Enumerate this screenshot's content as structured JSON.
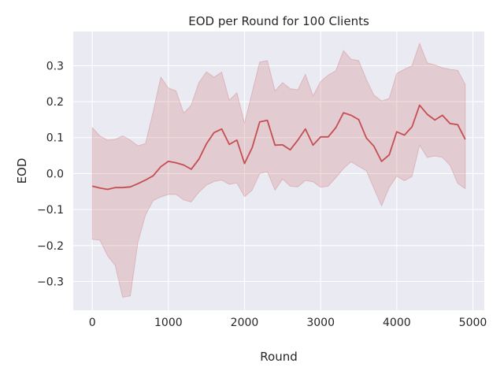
{
  "chart_data": {
    "type": "line",
    "title": "EOD per Round for 100 Clients",
    "xlabel": "Round",
    "ylabel": "EOD",
    "xlim": [
      -250,
      5150
    ],
    "ylim": [
      -0.38,
      0.395
    ],
    "xticks": [
      0,
      1000,
      2000,
      3000,
      4000,
      5000
    ],
    "xtick_labels": [
      "0",
      "1000",
      "2000",
      "3000",
      "4000",
      "5000"
    ],
    "yticks": [
      -0.3,
      -0.2,
      -0.1,
      0.0,
      0.1,
      0.2,
      0.3
    ],
    "ytick_labels": [
      "−0.3",
      "−0.2",
      "−0.1",
      "0.0",
      "0.1",
      "0.2",
      "0.3"
    ],
    "grid": true,
    "colors": {
      "line": "#c44e52",
      "band": "#c44e52",
      "background": "#eaeaf2",
      "grid": "#ffffff"
    },
    "x": [
      0,
      100,
      200,
      300,
      400,
      500,
      600,
      700,
      800,
      900,
      1000,
      1100,
      1200,
      1300,
      1400,
      1500,
      1600,
      1700,
      1800,
      1900,
      2000,
      2100,
      2200,
      2300,
      2400,
      2500,
      2600,
      2700,
      2800,
      2900,
      3000,
      3100,
      3200,
      3300,
      3400,
      3500,
      3600,
      3700,
      3800,
      3900,
      4000,
      4100,
      4200,
      4300,
      4400,
      4500,
      4600,
      4700,
      4800,
      4900
    ],
    "series": [
      {
        "values": [
          -0.035,
          -0.04,
          -0.044,
          -0.039,
          -0.039,
          -0.037,
          -0.028,
          -0.018,
          -0.006,
          0.019,
          0.034,
          0.03,
          0.024,
          0.012,
          0.04,
          0.083,
          0.114,
          0.124,
          0.081,
          0.093,
          0.028,
          0.072,
          0.144,
          0.148,
          0.079,
          0.08,
          0.066,
          0.093,
          0.124,
          0.079,
          0.102,
          0.102,
          0.128,
          0.169,
          0.162,
          0.15,
          0.099,
          0.076,
          0.034,
          0.052,
          0.116,
          0.107,
          0.13,
          0.19,
          0.165,
          0.149,
          0.162,
          0.139,
          0.136,
          0.095
        ],
        "lower": [
          -0.183,
          -0.185,
          -0.228,
          -0.255,
          -0.344,
          -0.34,
          -0.19,
          -0.115,
          -0.075,
          -0.065,
          -0.058,
          -0.058,
          -0.073,
          -0.079,
          -0.052,
          -0.032,
          -0.022,
          -0.018,
          -0.03,
          -0.026,
          -0.064,
          -0.046,
          0.0,
          0.005,
          -0.046,
          -0.015,
          -0.035,
          -0.037,
          -0.019,
          -0.023,
          -0.038,
          -0.035,
          -0.011,
          0.014,
          0.033,
          0.02,
          0.008,
          -0.041,
          -0.09,
          -0.039,
          -0.007,
          -0.02,
          -0.008,
          0.079,
          0.045,
          0.049,
          0.045,
          0.023,
          -0.027,
          -0.042
        ],
        "upper": [
          0.128,
          0.105,
          0.093,
          0.095,
          0.105,
          0.093,
          0.077,
          0.084,
          0.172,
          0.268,
          0.238,
          0.23,
          0.168,
          0.19,
          0.253,
          0.283,
          0.268,
          0.282,
          0.204,
          0.225,
          0.14,
          0.226,
          0.31,
          0.314,
          0.23,
          0.253,
          0.236,
          0.233,
          0.276,
          0.216,
          0.256,
          0.274,
          0.286,
          0.342,
          0.318,
          0.314,
          0.262,
          0.218,
          0.202,
          0.209,
          0.278,
          0.29,
          0.3,
          0.362,
          0.308,
          0.302,
          0.294,
          0.29,
          0.287,
          0.248
        ]
      }
    ]
  }
}
